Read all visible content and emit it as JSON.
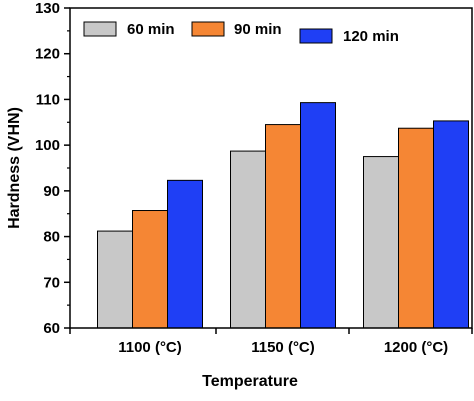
{
  "chart_data": {
    "type": "bar",
    "categories": [
      "1100 (°C)",
      "1150 (°C)",
      "1200 (°C)"
    ],
    "series": [
      {
        "name": "60 min",
        "color": "#c8c8c8",
        "values": [
          81.2,
          98.7,
          97.5
        ]
      },
      {
        "name": "90 min",
        "color": "#f58634",
        "values": [
          85.7,
          104.5,
          103.7
        ]
      },
      {
        "name": "120 min",
        "color": "#1f3ff5",
        "values": [
          92.3,
          109.3,
          105.3
        ]
      }
    ],
    "title": "",
    "xlabel": "Temperature",
    "ylabel": "Hardness (VHN)",
    "ylim": [
      60,
      130
    ],
    "yticks": [
      60,
      70,
      80,
      90,
      100,
      110,
      120,
      130
    ],
    "grid": false,
    "legend_position": "top-left"
  }
}
